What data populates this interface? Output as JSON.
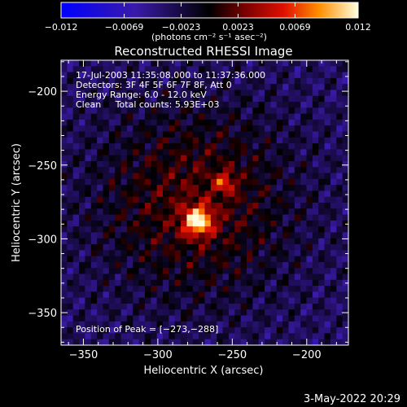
{
  "chart_data": {
    "type": "heatmap",
    "title": "Reconstructed RHESSI Image",
    "xlabel": "Heliocentric X (arcsec)",
    "ylabel": "Heliocentric Y (arcsec)",
    "xlim": [
      -365,
      -172
    ],
    "ylim": [
      -372,
      -179
    ],
    "xticks": [
      -350,
      -300,
      -250,
      -200
    ],
    "yticks": [
      -200,
      -250,
      -300,
      -350
    ],
    "xtick_labels": [
      "−350",
      "−300",
      "−250",
      "−200"
    ],
    "ytick_labels": [
      "−200",
      "−250",
      "−300",
      "−350"
    ],
    "colorbar": {
      "range": [
        -0.012,
        0.012
      ],
      "ticks": [
        -0.012,
        -0.0069,
        -0.0023,
        0.0023,
        0.0069,
        0.012
      ],
      "tick_labels": [
        "−0.012",
        "−0.0069",
        "−0.0023",
        "0.0023",
        "0.0069",
        "0.012"
      ],
      "unit_label": "(photons cm⁻² s⁻¹ asec⁻²)"
    },
    "annotations": [
      "17-Jul-2003 11:35:08.000 to 11:37:36.000",
      "Detectors: 3F 4F 5F 6F 7F 8F, Att 0",
      "Energy Range: 6.0 - 12.0 keV",
      "Clean     Total counts: 5.93E+03"
    ],
    "peak_label": "Position of Peak = [−273,−288]",
    "peak": {
      "x": -273,
      "y": -288,
      "value": 0.012
    },
    "secondary_source": {
      "x": -255,
      "y": -262,
      "value": 0.006
    }
  },
  "footer": {
    "date": "3-May-2022 20:29"
  }
}
